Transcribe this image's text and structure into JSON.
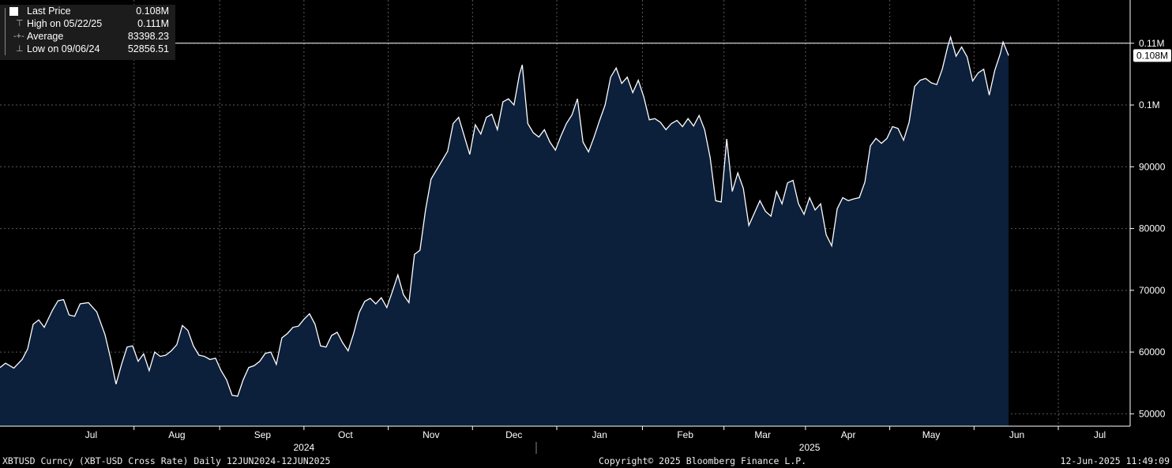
{
  "legend": {
    "last_price": {
      "label": "Last Price",
      "value": "0.108M"
    },
    "high": {
      "label": "High on 05/22/25",
      "value": "0.111M"
    },
    "average": {
      "label": "Average",
      "value": "83398.23"
    },
    "low": {
      "label": "Low on 09/06/24",
      "value": "52856.51"
    }
  },
  "footer": {
    "ticker": "XBTUSD Curncy (XBT-USD Cross Rate)  Daily 12JUN2024-12JUN2025",
    "copyright": "Copyright© 2025 Bloomberg Finance L.P.",
    "timestamp": "12-Jun-2025 11:49:09"
  },
  "colors": {
    "background": "#000000",
    "line": "#ffffff",
    "fill": "#0c1f3b",
    "grid": "#5a5a5a"
  },
  "chart_data": {
    "type": "area",
    "x_start": "2024-06-12",
    "x_end": "2025-06-12",
    "x_axis_max": "2025-07-26",
    "ylim": [
      48000,
      117000
    ],
    "y_ticks": [
      {
        "value": 50000,
        "label": "50000"
      },
      {
        "value": 60000,
        "label": "60000"
      },
      {
        "value": 70000,
        "label": "70000"
      },
      {
        "value": 80000,
        "label": "80000"
      },
      {
        "value": 90000,
        "label": "90000"
      },
      {
        "value": 100000,
        "label": "0.1M"
      },
      {
        "value": 110000,
        "label": "0.11M"
      }
    ],
    "month_labels": [
      {
        "label": "Jul",
        "date": "2024-07-15"
      },
      {
        "label": "Aug",
        "date": "2024-08-15"
      },
      {
        "label": "Sep",
        "date": "2024-09-15"
      },
      {
        "label": "Oct",
        "date": "2024-10-15"
      },
      {
        "label": "Nov",
        "date": "2024-11-15"
      },
      {
        "label": "Dec",
        "date": "2024-12-15"
      },
      {
        "label": "Jan",
        "date": "2025-01-15"
      },
      {
        "label": "Feb",
        "date": "2025-02-15"
      },
      {
        "label": "Mar",
        "date": "2025-03-15"
      },
      {
        "label": "Apr",
        "date": "2025-04-15"
      },
      {
        "label": "May",
        "date": "2025-05-15"
      },
      {
        "label": "Jun",
        "date": "2025-06-15"
      },
      {
        "label": "Jul",
        "date": "2025-07-15"
      }
    ],
    "year_labels": [
      {
        "label": "2024",
        "date": "2024-09-30"
      },
      {
        "label": "2025",
        "date": "2025-04-01"
      }
    ],
    "last_label": "0.108M",
    "reference_line": 110000,
    "grid": true,
    "series": [
      {
        "name": "Last Price",
        "points": [
          [
            "2024-06-12",
            57500
          ],
          [
            "2024-06-14",
            58200
          ],
          [
            "2024-06-17",
            57400
          ],
          [
            "2024-06-20",
            58800
          ],
          [
            "2024-06-22",
            60500
          ],
          [
            "2024-06-24",
            64500
          ],
          [
            "2024-06-26",
            65200
          ],
          [
            "2024-06-28",
            64000
          ],
          [
            "2024-07-01",
            66800
          ],
          [
            "2024-07-03",
            68300
          ],
          [
            "2024-07-05",
            68500
          ],
          [
            "2024-07-07",
            66000
          ],
          [
            "2024-07-09",
            65800
          ],
          [
            "2024-07-11",
            67800
          ],
          [
            "2024-07-14",
            68000
          ],
          [
            "2024-07-17",
            66500
          ],
          [
            "2024-07-20",
            62800
          ],
          [
            "2024-07-22",
            59000
          ],
          [
            "2024-07-24",
            54800
          ],
          [
            "2024-07-26",
            58000
          ],
          [
            "2024-07-28",
            60800
          ],
          [
            "2024-07-30",
            61000
          ],
          [
            "2024-08-01",
            58500
          ],
          [
            "2024-08-03",
            59700
          ],
          [
            "2024-08-05",
            57000
          ],
          [
            "2024-08-07",
            60000
          ],
          [
            "2024-08-09",
            59300
          ],
          [
            "2024-08-11",
            59500
          ],
          [
            "2024-08-13",
            60200
          ],
          [
            "2024-08-15",
            61200
          ],
          [
            "2024-08-17",
            64300
          ],
          [
            "2024-08-19",
            63500
          ],
          [
            "2024-08-21",
            61000
          ],
          [
            "2024-08-23",
            59500
          ],
          [
            "2024-08-25",
            59300
          ],
          [
            "2024-08-27",
            58800
          ],
          [
            "2024-08-29",
            59000
          ],
          [
            "2024-08-31",
            57000
          ],
          [
            "2024-09-02",
            55500
          ],
          [
            "2024-09-04",
            53000
          ],
          [
            "2024-09-06",
            52850
          ],
          [
            "2024-09-08",
            55500
          ],
          [
            "2024-09-10",
            57500
          ],
          [
            "2024-09-12",
            57800
          ],
          [
            "2024-09-14",
            58500
          ],
          [
            "2024-09-16",
            59800
          ],
          [
            "2024-09-18",
            60000
          ],
          [
            "2024-09-20",
            58000
          ],
          [
            "2024-09-22",
            62300
          ],
          [
            "2024-09-24",
            63000
          ],
          [
            "2024-09-26",
            64000
          ],
          [
            "2024-09-28",
            64200
          ],
          [
            "2024-09-30",
            65300
          ],
          [
            "2024-10-02",
            66200
          ],
          [
            "2024-10-04",
            64500
          ],
          [
            "2024-10-06",
            61000
          ],
          [
            "2024-10-08",
            60800
          ],
          [
            "2024-10-10",
            62700
          ],
          [
            "2024-10-12",
            63200
          ],
          [
            "2024-10-14",
            61500
          ],
          [
            "2024-10-16",
            60200
          ],
          [
            "2024-10-18",
            63000
          ],
          [
            "2024-10-20",
            66400
          ],
          [
            "2024-10-22",
            68200
          ],
          [
            "2024-10-24",
            68700
          ],
          [
            "2024-10-26",
            67800
          ],
          [
            "2024-10-28",
            68800
          ],
          [
            "2024-10-30",
            67200
          ],
          [
            "2024-11-01",
            69800
          ],
          [
            "2024-11-03",
            72500
          ],
          [
            "2024-11-05",
            69300
          ],
          [
            "2024-11-07",
            68000
          ],
          [
            "2024-11-09",
            75800
          ],
          [
            "2024-11-11",
            76500
          ],
          [
            "2024-11-13",
            83000
          ],
          [
            "2024-11-15",
            88000
          ],
          [
            "2024-11-17",
            89500
          ],
          [
            "2024-11-19",
            91000
          ],
          [
            "2024-11-21",
            92500
          ],
          [
            "2024-11-23",
            97000
          ],
          [
            "2024-11-25",
            98000
          ],
          [
            "2024-11-27",
            95000
          ],
          [
            "2024-11-29",
            92000
          ],
          [
            "2024-12-01",
            96800
          ],
          [
            "2024-12-03",
            95300
          ],
          [
            "2024-12-05",
            98000
          ],
          [
            "2024-12-07",
            98500
          ],
          [
            "2024-12-09",
            96000
          ],
          [
            "2024-12-11",
            100500
          ],
          [
            "2024-12-13",
            101000
          ],
          [
            "2024-12-15",
            100000
          ],
          [
            "2024-12-17",
            105000
          ],
          [
            "2024-12-18",
            106500
          ],
          [
            "2024-12-20",
            97000
          ],
          [
            "2024-12-22",
            95500
          ],
          [
            "2024-12-24",
            94800
          ],
          [
            "2024-12-26",
            96000
          ],
          [
            "2024-12-28",
            94000
          ],
          [
            "2024-12-30",
            92700
          ],
          [
            "2025-01-01",
            95000
          ],
          [
            "2025-01-03",
            97000
          ],
          [
            "2025-01-05",
            98400
          ],
          [
            "2025-01-07",
            101000
          ],
          [
            "2025-01-09",
            94000
          ],
          [
            "2025-01-11",
            92400
          ],
          [
            "2025-01-13",
            94800
          ],
          [
            "2025-01-15",
            97500
          ],
          [
            "2025-01-17",
            100000
          ],
          [
            "2025-01-19",
            104500
          ],
          [
            "2025-01-21",
            106000
          ],
          [
            "2025-01-23",
            103500
          ],
          [
            "2025-01-25",
            104500
          ],
          [
            "2025-01-27",
            102000
          ],
          [
            "2025-01-29",
            104000
          ],
          [
            "2025-01-31",
            101300
          ],
          [
            "2025-02-02",
            97600
          ],
          [
            "2025-02-04",
            97800
          ],
          [
            "2025-02-06",
            97200
          ],
          [
            "2025-02-08",
            96000
          ],
          [
            "2025-02-10",
            97000
          ],
          [
            "2025-02-12",
            97500
          ],
          [
            "2025-02-14",
            96500
          ],
          [
            "2025-02-16",
            97800
          ],
          [
            "2025-02-18",
            96600
          ],
          [
            "2025-02-20",
            98300
          ],
          [
            "2025-02-22",
            96000
          ],
          [
            "2025-02-24",
            91500
          ],
          [
            "2025-02-26",
            84500
          ],
          [
            "2025-02-28",
            84300
          ],
          [
            "2025-03-02",
            94500
          ],
          [
            "2025-03-04",
            86000
          ],
          [
            "2025-03-06",
            89000
          ],
          [
            "2025-03-08",
            86500
          ],
          [
            "2025-03-10",
            80500
          ],
          [
            "2025-03-12",
            82500
          ],
          [
            "2025-03-14",
            84500
          ],
          [
            "2025-03-16",
            82800
          ],
          [
            "2025-03-18",
            82000
          ],
          [
            "2025-03-20",
            86000
          ],
          [
            "2025-03-22",
            84000
          ],
          [
            "2025-03-24",
            87400
          ],
          [
            "2025-03-26",
            87800
          ],
          [
            "2025-03-28",
            84000
          ],
          [
            "2025-03-30",
            82300
          ],
          [
            "2025-04-01",
            85000
          ],
          [
            "2025-04-03",
            83000
          ],
          [
            "2025-04-05",
            84000
          ],
          [
            "2025-04-07",
            79000
          ],
          [
            "2025-04-09",
            77200
          ],
          [
            "2025-04-11",
            83200
          ],
          [
            "2025-04-13",
            85000
          ],
          [
            "2025-04-15",
            84500
          ],
          [
            "2025-04-17",
            84800
          ],
          [
            "2025-04-19",
            85000
          ],
          [
            "2025-04-21",
            87500
          ],
          [
            "2025-04-23",
            93400
          ],
          [
            "2025-04-25",
            94600
          ],
          [
            "2025-04-27",
            93800
          ],
          [
            "2025-04-29",
            94600
          ],
          [
            "2025-05-01",
            96500
          ],
          [
            "2025-05-03",
            96200
          ],
          [
            "2025-05-05",
            94300
          ],
          [
            "2025-05-07",
            97200
          ],
          [
            "2025-05-09",
            103000
          ],
          [
            "2025-05-11",
            104000
          ],
          [
            "2025-05-13",
            104300
          ],
          [
            "2025-05-15",
            103600
          ],
          [
            "2025-05-17",
            103300
          ],
          [
            "2025-05-19",
            105800
          ],
          [
            "2025-05-21",
            109500
          ],
          [
            "2025-05-22",
            111000
          ],
          [
            "2025-05-24",
            107900
          ],
          [
            "2025-05-26",
            109400
          ],
          [
            "2025-05-28",
            107800
          ],
          [
            "2025-05-30",
            103900
          ],
          [
            "2025-06-01",
            105200
          ],
          [
            "2025-06-03",
            105800
          ],
          [
            "2025-06-05",
            101600
          ],
          [
            "2025-06-07",
            105600
          ],
          [
            "2025-06-09",
            108300
          ],
          [
            "2025-06-10",
            110200
          ],
          [
            "2025-06-12",
            108000
          ]
        ]
      }
    ]
  }
}
